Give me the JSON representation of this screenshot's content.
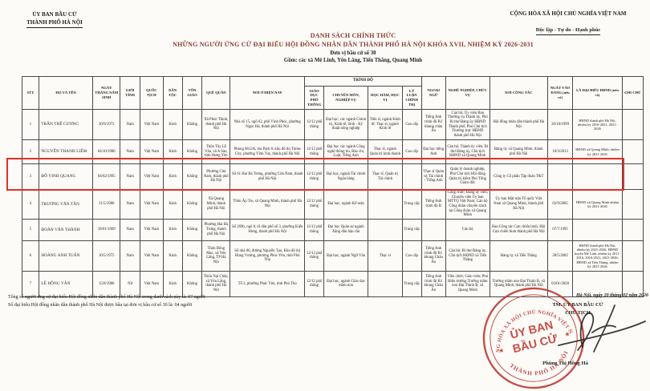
{
  "header": {
    "org_line1": "ỦY BAN BẦU CỬ",
    "org_line2": "THÀNH PHỐ HÀ NỘI",
    "national_line1": "CỘNG HÒA XÃ HỘI CHỦ NGHĨA VIỆT NAM",
    "national_line2": "Độc lập - Tự do - Hạnh phúc",
    "title_line1": "DANH SÁCH CHÍNH THỨC",
    "title_line2": "NHỮNG NGƯỜI ỨNG CỬ ĐẠI BIỂU HỘI ĐỒNG NHÂN DÂN THÀNH PHỐ HÀ NỘI KHÓA XVII, NHIỆM KỲ 2026-2031",
    "title_line3": "Đơn vị bầu cử số 30",
    "title_line4": "Gồm: các xã Mê Linh, Yên Lãng, Tiến Thắng, Quang Minh"
  },
  "table": {
    "group_header": "TRÌNH ĐỘ",
    "columns": [
      "STT",
      "HỌ VÀ TÊN",
      "NGÀY THÁNG NĂM SINH",
      "GIỚI TÍNH",
      "QUỐC TỊCH",
      "DÂN TỘC",
      "TÔN GIÁO",
      "QUÊ QUÁN",
      "NƠI Ở HIỆN NAY",
      "GIÁO DỤC PHỔ THÔNG",
      "CHUYÊN MÔN, NGHIỆP VỤ",
      "HỌC HÀM, HỌC VỊ",
      "LÝ LUẬN CHÍNH TRỊ",
      "NGOẠI NGỮ",
      "NGHỀ NGHIỆP, CHỨC VỤ",
      "NƠI CÔNG TÁC",
      "NGÀY VÀO ĐẢNG (nếu có)",
      "LÀ ĐẠI BIỂU HĐND (nếu có)",
      "GHI CHÚ"
    ],
    "rows": [
      [
        "1",
        "TRẦN THẾ CƯƠNG",
        "30/9/1973",
        "Nam",
        "Việt Nam",
        "Kinh",
        "Không",
        "Xã Phúc Thịnh, thành phố Hà Nội",
        "Nhà số 15, ngõ 62, phố Vĩnh Phúc, phường Ngọc Hà, thành phố Hà Nội",
        "12/12 phổ thông",
        "Đại học: các ngành Chính trị, Kinh tế, Sinh - Kỹ thuật nông nghiệp",
        "Tiến sĩ, ngành Kinh tế; Thạc sĩ, ngành Kinh tế",
        "Cao cấp",
        "Tiếng Anh trình độ B2 khung châu Âu",
        "Cán bộ; Ủy viên Ban Thường vụ Thành ủy, Phó Bí thư Đảng ủy HĐND Thành phố, Phó Chủ tịch Thường trực HĐND thành phố Hà Nội",
        "Hội đồng nhân dân thành phố Hà Nội",
        "20/10/1999",
        "HĐND thành phố Hà Nội, nhiệm kỳ 2016-2021, 2021-2026",
        ""
      ],
      [
        "2",
        "NGUYỄN THANH LIÊM",
        "04/10/1980",
        "Nam",
        "Việt Nam",
        "Kinh",
        "Không",
        "Thôn Tây Lễ Văn, xã A Sào, tỉnh Hưng Yên",
        "Phòng 0612A, tòa Park 8, khu đô thị Times City, phường Vĩnh Tuy, thành phố Hà Nội",
        "12/12 phổ thông",
        "Đại học các ngành Công nghệ thông tin, Báo chí, Luật, Tiếng Anh",
        "Thạc sĩ, ngành Quản trị kinh doanh",
        "Cao cấp",
        "Đại học tiếng Anh",
        "Cán bộ; Thành ủy viên, Bí thư Đảng ủy, Chủ tịch HĐND xã Quang Minh",
        "Đảng ủy xã Quang Minh, thành phố Hà Nội",
        "18/3/2013",
        "HĐND xã Quang Minh, nhiệm kỳ 2021-2026",
        ""
      ],
      [
        "3",
        "ĐỖ VINH QUANG",
        "04/02/1995",
        "Nam",
        "Việt Nam",
        "Kinh",
        "Không",
        "Phường Cửa Nam, thành phố Hà Nội",
        "Số 61 Hai Bà Trưng, phường Cửa Nam, thành phố Hà Nội",
        "12/12 phổ thông",
        "Đại học, ngành Tài chính Ngân hàng",
        "Thạc sĩ, Quản trị Tài chính",
        "",
        "Thạc sĩ Quản trị Tài chính - Tiếng Anh",
        "Quản lý doanh nghiệp, Phó Chủ tịch Hội đồng Quản trị kiêm Phó Tổng Giám đốc",
        "Công ty Cổ phần Tập đoàn T&T",
        "",
        "",
        ""
      ],
      [
        "4",
        "TRƯƠNG VĂN TÂN",
        "21/5/1980",
        "Nam",
        "Việt Nam",
        "Kinh",
        "Không",
        "Xã Quang Minh, thành phố Hà Nội",
        "Thôn Ấp Tre, xã Quang Minh, thành phố Hà Nội",
        "12/12 phổ thông",
        "Đại học, ngành Kế toán",
        "",
        "Trung cấp",
        "Tiếng Anh trình độ B",
        "Công chức; Đảng ủy viên; Chuyên viên Ủy ban MTTQ Việt Nam; Cán bộ Công đoàn chuyên trách tại Công đoàn xã Quang Minh",
        "Ủy ban Mặt trận Tổ quốc Việt Nam xã Quang Minh, thành phố Hà Nội",
        "03/9/2005",
        "HĐND xã Quang Minh nhiệm kỳ 2021-2026",
        ""
      ],
      [
        "5",
        "ĐOÀN VĂN THÀNH",
        "18/01/1969",
        "Nam",
        "Việt Nam",
        "Kinh",
        "Không",
        "Phường Hai Bà Trưng, thành phố Hà Nội",
        "Số 269b, ngõ 8, tổ dân phố số 3, phường Kiến Hưng, thành phố Hà Nội",
        "12/12 phổ thông",
        "Đại học Quân sự ngành Xăng dầu hậu cần",
        "",
        "Trung cấp",
        "",
        "Cán bộ",
        "Ban Công tác Cựu chiến binh, Hội Cựu chiến binh thành phố Hà Nội",
        "07/7/1995",
        "",
        ""
      ],
      [
        "6",
        "HOÀNG ANH TUẤN",
        "10/5/1975",
        "Nam",
        "Việt Nam",
        "Kinh",
        "Không",
        "Thôn Bồng Mạc, xã Yên Lãng, TP Hà Nội",
        "Số nhà 06, đường Nguyễn Tạo, Khu đô thị Hùng Vương, phường Phúc Yên, tỉnh Phú Thọ",
        "12/12 phổ thông",
        "Đại học, ngành Ngữ Văn",
        "Thạc sĩ",
        "Cao cấp",
        "Tiếng Anh trình độ B1 khung Châu Âu",
        "Cán bộ; Bí thư Đảng ủy, Chủ tịch HĐND xã Tiến Thắng",
        "Đảng ủy xã Tiến Thắng",
        "28/5/2002",
        "HĐND thành phố Hà Nội, nhiệm kỳ 2021-2026; HĐND huyện Mê Linh, nhiệm kỳ 2011-2016, 2016-2021, 2021-2026; HĐND xã Tiến Thắng, nhiệm kỳ 2021-2026",
        ""
      ],
      [
        "7",
        "LÊ HỒNG VÂN",
        "15/8/1986",
        "Nữ",
        "Việt Nam",
        "Kinh",
        "Không",
        "Thôn Nại Châu, xã Yên Lãng, thành phố Hà Nội",
        "Tổ 2, phường Phúc Yên, tỉnh Phú Thọ",
        "12/12 phổ thông",
        "Đại học, ngành Giáo dục mầm non",
        "",
        "Trung cấp",
        "Tiếng Anh trình độ B1 khung Châu Âu",
        "Viên chức; Giáo viên; Phó Hiệu trưởng Trường mầm non Đại Thịnh B, xã Quang Minh",
        "Trường mầm non Đại Thịnh B, xã Quang Minh, thành phố Hà Nội",
        "03/01/2020",
        "",
        ""
      ]
    ]
  },
  "footer": {
    "total_line1": "Tổng số người ứng cử đại biểu Hội đồng nhân dân thành phố Hà Nội trong danh sách này là: 07 người",
    "total_line2": "Số đại biểu Hội đồng nhân dân thành phố Hà Nội được bầu tại đơn vị bầu cử số 30 là: 04 người",
    "date_line": "Hà Nội, ngày 20 tháng 02 năm 2026",
    "sign_org": "TM. ỦY BAN BẦU CỬ",
    "sign_title": "CHỦ TỊCH",
    "sign_name": "Phùng Thị Hồng Hà"
  },
  "stamp": {
    "arc_top": "CỘNG HÒA XÃ HỘI CHỦ NGHĨA VIỆT NAM",
    "arc_bottom": "THÀNH PHỐ HÀ NỘI",
    "center_line1": "ỦY BAN",
    "center_line2": "BẦU CỬ",
    "star": "★"
  },
  "colors": {
    "accent_red": "#e03225",
    "stamp_red": "#c23a33",
    "title_red": "#8a3b2e",
    "ink": "#222222",
    "border_col": "#4a4a4a",
    "paper": "#fcfbf8"
  }
}
